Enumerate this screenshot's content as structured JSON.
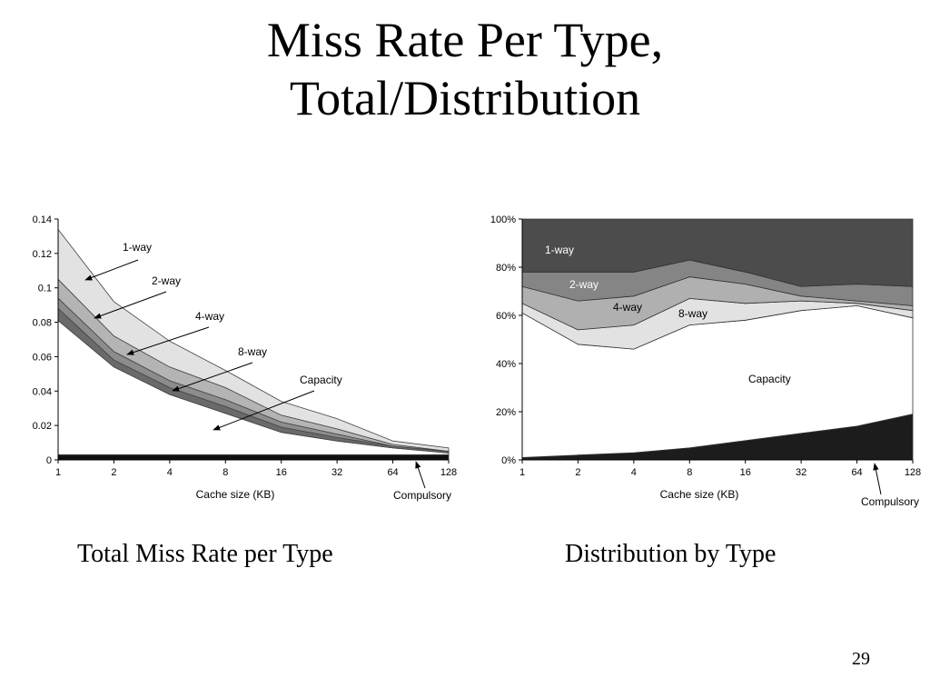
{
  "slide": {
    "title_line1": "Miss Rate Per Type,",
    "title_line2": "Total/Distribution",
    "caption_left": "Total Miss Rate per Type",
    "caption_right": "Distribution by Type",
    "page_number": "29"
  },
  "chart_data": [
    {
      "type": "area",
      "stacked": true,
      "title": "",
      "xlabel": "Cache size (KB)",
      "ylabel": "",
      "x_scale": "log2",
      "categories": [
        "1",
        "2",
        "4",
        "8",
        "16",
        "32",
        "64",
        "128"
      ],
      "ylim": [
        0,
        0.14
      ],
      "yticks": [
        "0",
        "0.02",
        "0.04",
        "0.06",
        "0.08",
        "0.1",
        "0.12",
        "0.14"
      ],
      "grid": false,
      "series": [
        {
          "name": "Compulsory",
          "values": [
            0.003,
            0.003,
            0.003,
            0.003,
            0.003,
            0.003,
            0.003,
            0.003
          ],
          "color": "#111111"
        },
        {
          "name": "Capacity",
          "values": [
            0.078,
            0.051,
            0.035,
            0.024,
            0.013,
            0.008,
            0.004,
            0.001
          ],
          "color": "#ffffff"
        },
        {
          "name": "8-way",
          "values": [
            0.007,
            0.004,
            0.004,
            0.004,
            0.003,
            0.002,
            0.001,
            0.001
          ],
          "color": "#6a6a6a"
        },
        {
          "name": "4-way",
          "values": [
            0.006,
            0.005,
            0.004,
            0.004,
            0.003,
            0.002,
            0.0,
            0.0
          ],
          "color": "#8c8c8c"
        },
        {
          "name": "2-way",
          "values": [
            0.011,
            0.009,
            0.008,
            0.007,
            0.004,
            0.003,
            0.001,
            0.0
          ],
          "color": "#b4b4b4"
        },
        {
          "name": "1-way",
          "values": [
            0.029,
            0.02,
            0.015,
            0.01,
            0.008,
            0.006,
            0.002,
            0.002
          ],
          "color": "#e2e2e2"
        }
      ],
      "annotations": [
        "1-way",
        "2-way",
        "4-way",
        "8-way",
        "Capacity",
        "Compulsory"
      ]
    },
    {
      "type": "area",
      "stacked": true,
      "percent": true,
      "title": "",
      "xlabel": "Cache size (KB)",
      "ylabel": "",
      "x_scale": "log2",
      "categories": [
        "1",
        "2",
        "4",
        "8",
        "16",
        "32",
        "64",
        "128"
      ],
      "ylim": [
        0,
        100
      ],
      "yticks": [
        "0%",
        "20%",
        "40%",
        "60%",
        "80%",
        "100%"
      ],
      "grid": false,
      "series": [
        {
          "name": "Compulsory",
          "values": [
            1,
            2,
            3,
            5,
            8,
            11,
            14,
            19
          ],
          "color": "#1c1c1c"
        },
        {
          "name": "Capacity",
          "values": [
            60,
            46,
            43,
            51,
            50,
            51,
            50,
            40
          ],
          "color": "#ffffff"
        },
        {
          "name": "8-way",
          "values": [
            4,
            6,
            10,
            11,
            7,
            4,
            1,
            3
          ],
          "color": "#e2e2e2"
        },
        {
          "name": "4-way",
          "values": [
            7,
            12,
            12,
            9,
            8,
            2,
            1,
            2
          ],
          "color": "#b0b0b0"
        },
        {
          "name": "2-way",
          "values": [
            6,
            12,
            10,
            7,
            5,
            4,
            7,
            8
          ],
          "color": "#858585"
        },
        {
          "name": "1-way",
          "values": [
            22,
            22,
            22,
            17,
            22,
            28,
            27,
            28
          ],
          "color": "#4c4c4c"
        }
      ],
      "annotations": [
        "1-way",
        "2-way",
        "4-way",
        "8-way",
        "Capacity",
        "Compulsory"
      ]
    }
  ]
}
